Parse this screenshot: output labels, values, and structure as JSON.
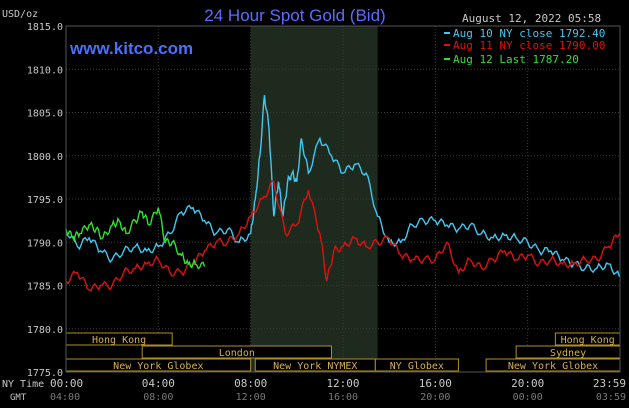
{
  "header": {
    "unit_label": "USD/oz",
    "title": "24 Hour Spot Gold (Bid)",
    "timestamp": "August 12, 2022 05:58",
    "watermark": "www.kitco.com"
  },
  "colors": {
    "background": "#000000",
    "session_shade": "#1f2a1f",
    "grid": "#3a3a3a",
    "axis_text": "#c8c8c8",
    "title": "#5a6cff",
    "watermark": "#4a70ff",
    "aug10": "#40c8f0",
    "aug11": "#e01010",
    "aug12": "#30e030",
    "session_box_fill": "#000000",
    "session_box_border": "#b09020",
    "session_box_text": "#d4b050"
  },
  "chart_data": {
    "type": "line",
    "title": "24 Hour Spot Gold (Bid)",
    "ylabel": "USD/oz",
    "xlabel": "",
    "ylim": [
      1775.0,
      1815.0
    ],
    "xlim": [
      0,
      24
    ],
    "y_ticks": [
      "1775.0",
      "1780.0",
      "1785.0",
      "1790.0",
      "1795.0",
      "1800.0",
      "1805.0",
      "1810.0",
      "1815.0"
    ],
    "x_ticks_ny": [
      "00:00",
      "04:00",
      "08:00",
      "12:00",
      "16:00",
      "20:00",
      "23:59"
    ],
    "x_ticks_gmt": [
      "04:00",
      "08:00",
      "12:00",
      "16:00",
      "20:00",
      "00:00",
      "03:59"
    ],
    "x_row_label_ny": "NY Time",
    "x_row_label_gmt": "GMT",
    "grid": true,
    "legend_position": "top-right",
    "series": [
      {
        "name": "Aug 10 NY close 1792.40",
        "color_key": "aug10",
        "x": [
          0,
          0.5,
          1,
          1.5,
          2,
          2.5,
          3,
          3.5,
          4,
          4.5,
          5,
          5.5,
          6,
          6.5,
          7,
          7.5,
          8,
          8.2,
          8.4,
          8.6,
          8.8,
          9,
          9.2,
          9.4,
          9.6,
          9.8,
          10,
          10.2,
          10.5,
          11,
          11.5,
          12,
          12.5,
          13,
          13.5,
          14,
          14.5,
          15,
          15.5,
          16,
          16.5,
          17,
          17.5,
          18,
          18.5,
          19,
          19.5,
          20,
          20.5,
          21,
          21.5,
          22,
          22.5,
          23,
          23.5,
          23.98
        ],
        "y": [
          1791.5,
          1789.5,
          1790.5,
          1789,
          1788,
          1789,
          1789.5,
          1789,
          1789.5,
          1791,
          1793.5,
          1794,
          1792.5,
          1791,
          1791.5,
          1790,
          1791,
          1795,
          1800,
          1807,
          1803,
          1793,
          1797,
          1793,
          1797,
          1798,
          1797,
          1802,
          1798,
          1802,
          1800,
          1798,
          1799,
          1798,
          1793,
          1790,
          1790,
          1792,
          1792.5,
          1792.5,
          1792,
          1791.5,
          1792,
          1791,
          1790.5,
          1790.8,
          1790.5,
          1790,
          1789,
          1789,
          1788,
          1787.5,
          1787,
          1787,
          1787.5,
          1786
        ]
      },
      {
        "name": "Aug 11 NY close 1790.00",
        "color_key": "aug11",
        "x": [
          0,
          0.5,
          1,
          1.5,
          2,
          2.5,
          3,
          3.5,
          4,
          4.5,
          5,
          5.5,
          6,
          6.5,
          7,
          7.5,
          8,
          8.5,
          9,
          9.5,
          10,
          10.5,
          11,
          11.3,
          11.6,
          12,
          12.5,
          13,
          13.5,
          14,
          14.5,
          15,
          15.5,
          16,
          16.5,
          17,
          17.5,
          18,
          18.5,
          19,
          19.5,
          20,
          20.5,
          21,
          21.5,
          22,
          22.5,
          23,
          23.5,
          23.98
        ],
        "y": [
          1785.5,
          1786.5,
          1784.5,
          1785,
          1785,
          1786.5,
          1787,
          1787.5,
          1788,
          1786.5,
          1786.5,
          1787.5,
          1789,
          1790,
          1790,
          1791,
          1793,
          1795,
          1797,
          1791,
          1792,
          1796,
          1791,
          1785.5,
          1789,
          1789.5,
          1790.5,
          1789.5,
          1790,
          1790.5,
          1788.5,
          1788,
          1788,
          1788,
          1790,
          1786.5,
          1788,
          1787,
          1788,
          1789,
          1788,
          1788.5,
          1787.5,
          1788,
          1787.5,
          1787.5,
          1788,
          1788,
          1789.5,
          1791
        ]
      },
      {
        "name": "Aug 12 Last 1787.20",
        "color_key": "aug12",
        "x": [
          0,
          0.3,
          0.6,
          1,
          1.3,
          1.6,
          2,
          2.3,
          2.6,
          3,
          3.3,
          3.6,
          4,
          4.3,
          4.6,
          5,
          5.3,
          5.6,
          6
        ],
        "y": [
          1791.5,
          1790.5,
          1791,
          1792,
          1791.5,
          1790.5,
          1792,
          1792.5,
          1791,
          1792.5,
          1793.5,
          1792,
          1794,
          1790,
          1790,
          1788.5,
          1787.5,
          1787.5,
          1787.2
        ]
      }
    ]
  },
  "sessions": {
    "shaded_range_hours": [
      8,
      13.5
    ],
    "rows": [
      [
        {
          "label": "Hong Kong",
          "start": 0,
          "end": 4.6,
          "color_key": "session_box_border"
        },
        {
          "label": "Hong Kong",
          "start": 21.2,
          "end": 24,
          "color_key": "session_box_border"
        }
      ],
      [
        {
          "label": "London",
          "start": 3.3,
          "end": 11.5,
          "color_key": "session_box_border"
        },
        {
          "label": "Sydney",
          "start": 19.5,
          "end": 24,
          "color_key": "session_box_border"
        }
      ],
      [
        {
          "label": "New York Globex",
          "start": 0,
          "end": 8,
          "color_key": "session_box_border"
        },
        {
          "label": "New York NYMEX",
          "start": 8.2,
          "end": 13.4,
          "color_key": "session_box_border"
        },
        {
          "label": "NY Globex",
          "start": 13.4,
          "end": 17,
          "color_key": "session_box_border"
        },
        {
          "label": "New York Globex",
          "start": 18.2,
          "end": 24,
          "color_key": "session_box_border"
        }
      ]
    ]
  }
}
